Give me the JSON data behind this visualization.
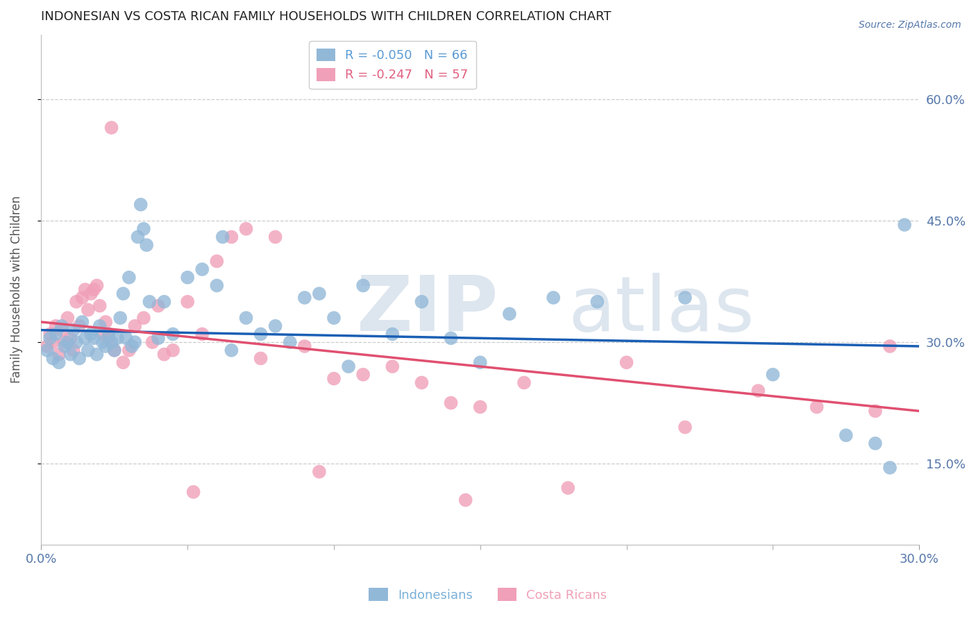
{
  "title": "INDONESIAN VS COSTA RICAN FAMILY HOUSEHOLDS WITH CHILDREN CORRELATION CHART",
  "source": "Source: ZipAtlas.com",
  "ylabel": "Family Households with Children",
  "xlim": [
    0.0,
    30.0
  ],
  "ylim": [
    5.0,
    68.0
  ],
  "yticks": [
    15.0,
    30.0,
    45.0,
    60.0
  ],
  "ytick_labels": [
    "15.0%",
    "30.0%",
    "45.0%",
    "60.0%"
  ],
  "xtick_show": [
    "0.0%",
    "30.0%"
  ],
  "xtick_vals_show": [
    0.0,
    30.0
  ],
  "xtick_minor_vals": [
    5.0,
    10.0,
    15.0,
    20.0,
    25.0
  ],
  "legend_entries": [
    {
      "label": "R = -0.050   N = 66",
      "color": "#5b9bd5"
    },
    {
      "label": "R = -0.247   N = 57",
      "color": "#e06080"
    }
  ],
  "footer_legend": [
    {
      "label": "Indonesians",
      "color": "#7ab0d8"
    },
    {
      "label": "Costa Ricans",
      "color": "#f0a0b8"
    }
  ],
  "blue_scatter_x": [
    0.2,
    0.3,
    0.4,
    0.5,
    0.6,
    0.7,
    0.8,
    0.9,
    1.0,
    1.1,
    1.2,
    1.3,
    1.4,
    1.5,
    1.6,
    1.7,
    1.8,
    1.9,
    2.0,
    2.1,
    2.2,
    2.3,
    2.4,
    2.5,
    2.6,
    2.7,
    2.8,
    2.9,
    3.0,
    3.1,
    3.2,
    3.3,
    3.4,
    3.5,
    3.6,
    3.7,
    4.0,
    4.2,
    4.5,
    5.0,
    5.5,
    6.0,
    6.2,
    6.5,
    7.0,
    7.5,
    8.0,
    8.5,
    9.0,
    9.5,
    10.0,
    10.5,
    11.0,
    12.0,
    13.0,
    14.0,
    15.0,
    16.0,
    17.5,
    19.0,
    22.0,
    25.0,
    27.5,
    28.5,
    29.0,
    29.5
  ],
  "blue_scatter_y": [
    29.0,
    30.5,
    28.0,
    31.0,
    27.5,
    32.0,
    29.5,
    30.0,
    28.5,
    31.5,
    30.0,
    28.0,
    32.5,
    30.5,
    29.0,
    31.0,
    30.5,
    28.5,
    32.0,
    30.0,
    29.5,
    31.0,
    30.0,
    29.0,
    30.5,
    33.0,
    36.0,
    30.5,
    38.0,
    29.5,
    30.0,
    43.0,
    47.0,
    44.0,
    42.0,
    35.0,
    30.5,
    35.0,
    31.0,
    38.0,
    39.0,
    37.0,
    43.0,
    29.0,
    33.0,
    31.0,
    32.0,
    30.0,
    35.5,
    36.0,
    33.0,
    27.0,
    37.0,
    31.0,
    35.0,
    30.5,
    27.5,
    33.5,
    35.5,
    35.0,
    35.5,
    26.0,
    18.5,
    17.5,
    14.5,
    44.5
  ],
  "pink_scatter_x": [
    0.2,
    0.3,
    0.4,
    0.5,
    0.6,
    0.7,
    0.8,
    0.9,
    1.0,
    1.1,
    1.2,
    1.3,
    1.4,
    1.5,
    1.6,
    1.7,
    1.8,
    1.9,
    2.0,
    2.1,
    2.2,
    2.3,
    2.5,
    2.8,
    3.0,
    3.2,
    3.5,
    3.8,
    4.0,
    4.2,
    4.5,
    5.0,
    5.5,
    6.0,
    6.5,
    7.0,
    7.5,
    8.0,
    9.0,
    10.0,
    11.0,
    12.0,
    13.0,
    14.0,
    15.0,
    16.5,
    20.0,
    22.0,
    24.5,
    26.5,
    2.4,
    5.2,
    9.5,
    14.5,
    18.0,
    28.5,
    29.0
  ],
  "pink_scatter_y": [
    29.5,
    31.0,
    30.0,
    32.0,
    28.5,
    31.5,
    30.0,
    33.0,
    30.5,
    29.0,
    35.0,
    32.0,
    35.5,
    36.5,
    34.0,
    36.0,
    36.5,
    37.0,
    34.5,
    31.0,
    32.5,
    30.5,
    29.0,
    27.5,
    29.0,
    32.0,
    33.0,
    30.0,
    34.5,
    28.5,
    29.0,
    35.0,
    31.0,
    40.0,
    43.0,
    44.0,
    28.0,
    43.0,
    29.5,
    25.5,
    26.0,
    27.0,
    25.0,
    22.5,
    22.0,
    25.0,
    27.5,
    19.5,
    24.0,
    22.0,
    56.5,
    11.5,
    14.0,
    10.5,
    12.0,
    21.5,
    29.5
  ],
  "blue_line_x0": 0.0,
  "blue_line_y0": 31.5,
  "blue_line_x1": 30.0,
  "blue_line_y1": 29.5,
  "pink_line_x0": 0.0,
  "pink_line_y0": 32.5,
  "pink_line_x1": 30.0,
  "pink_line_y1": 21.5,
  "blue_line_color": "#1a5fb4",
  "pink_line_color": "#e05070",
  "scatter_blue_color": "#92b8d8",
  "scatter_pink_color": "#f0a0b8",
  "bg_color": "#ffffff",
  "grid_color": "#cccccc",
  "title_color": "#222222",
  "axis_label_color": "#5577aa",
  "ylabel_color": "#555555",
  "watermark_color": "#dde6ef"
}
